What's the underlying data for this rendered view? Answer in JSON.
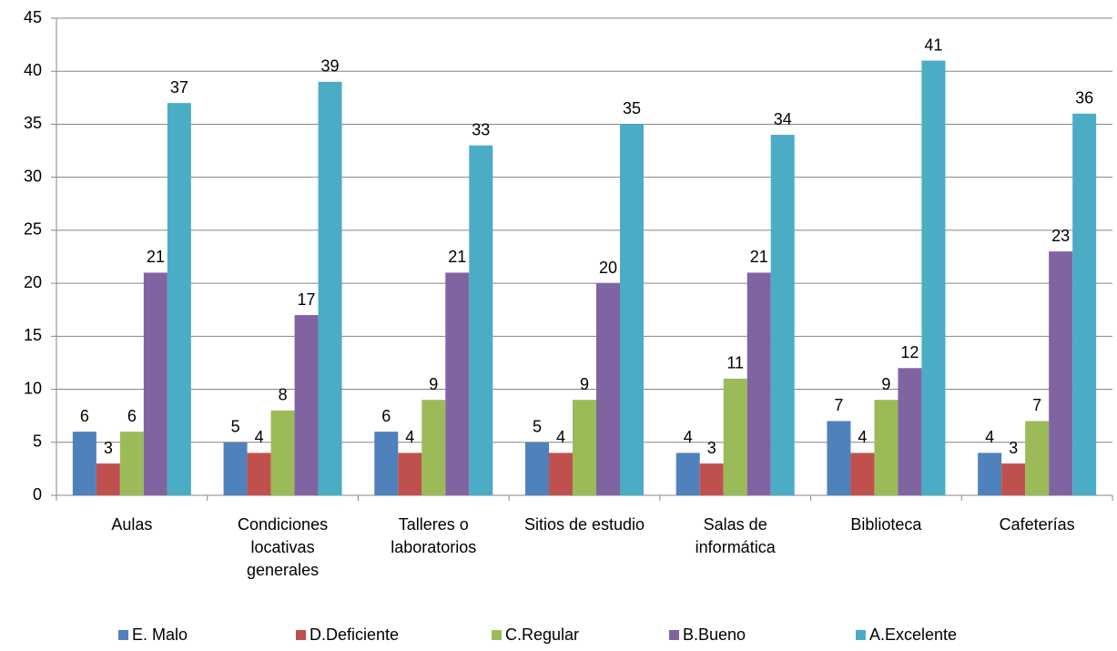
{
  "chart_data": {
    "type": "bar",
    "categories": [
      "Aulas",
      "Condiciones locativas generales",
      "Talleres o laboratorios",
      "Sitios de estudio",
      "Salas de informática",
      "Biblioteca",
      "Cafeterías"
    ],
    "series": [
      {
        "name": "E. Malo",
        "color": "#4f81bd",
        "values": [
          6,
          5,
          6,
          5,
          4,
          7,
          4
        ]
      },
      {
        "name": "D.Deficiente",
        "color": "#c0504d",
        "values": [
          3,
          4,
          4,
          4,
          3,
          4,
          3
        ]
      },
      {
        "name": "C.Regular",
        "color": "#9bbb59",
        "values": [
          6,
          8,
          9,
          9,
          11,
          9,
          7
        ]
      },
      {
        "name": "B.Bueno",
        "color": "#8064a2",
        "values": [
          21,
          17,
          21,
          20,
          21,
          12,
          23
        ]
      },
      {
        "name": "A.Excelente",
        "color": "#4bacc6",
        "values": [
          37,
          39,
          33,
          35,
          34,
          41,
          36
        ]
      }
    ],
    "ylim": [
      0,
      45
    ],
    "yticks": [
      0,
      5,
      10,
      15,
      20,
      25,
      30,
      35,
      40,
      45
    ],
    "grid": true,
    "legend": "bottom"
  }
}
